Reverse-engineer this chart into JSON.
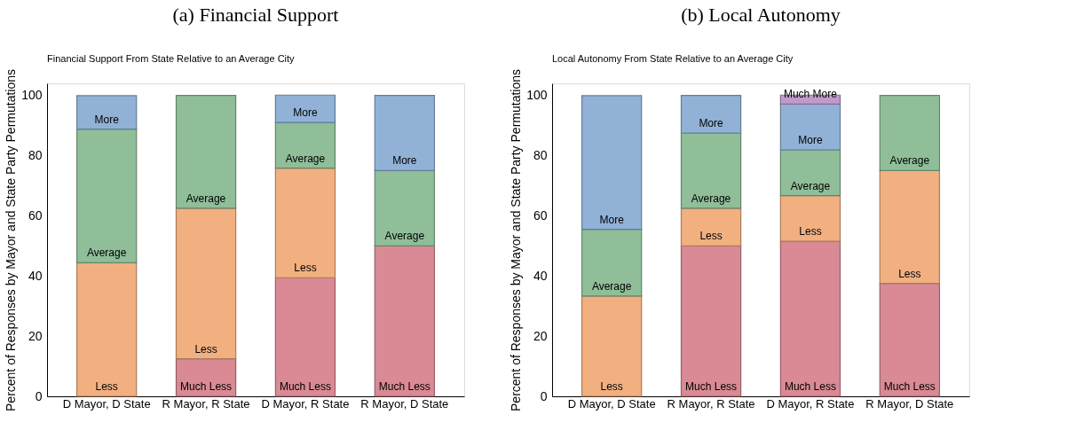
{
  "chart_data": [
    {
      "type": "bar",
      "stacked": true,
      "title": "(a) Financial Support",
      "subtitle": "Financial Support From State Relative to an Average City",
      "ylabel": "Percent of Responses by Mayor and State Party Permutations",
      "categories": [
        "D Mayor, D State",
        "R Mayor, R State",
        "D Mayor, R State",
        "R Mayor, D State"
      ],
      "series": [
        {
          "name": "Much Less",
          "color": "#d98a94",
          "values": [
            0,
            12.5,
            39.4,
            50
          ]
        },
        {
          "name": "Less",
          "color": "#f2b081",
          "values": [
            44.4,
            50,
            36.4,
            0
          ]
        },
        {
          "name": "Average",
          "color": "#8fbe99",
          "values": [
            44.4,
            37.5,
            15.2,
            25
          ]
        },
        {
          "name": "More",
          "color": "#91b2d6",
          "values": [
            11.1,
            0,
            9.1,
            25
          ]
        }
      ],
      "ylim": [
        0,
        104
      ],
      "yticks": [
        0,
        20,
        40,
        60,
        80,
        100
      ],
      "grid": false
    },
    {
      "type": "bar",
      "stacked": true,
      "title": "(b) Local Autonomy",
      "subtitle": "Local Autonomy From State Relative to an Average City",
      "ylabel": "Percent of Responses by Mayor and State Party Permutations",
      "categories": [
        "D Mayor, D State",
        "R Mayor, R State",
        "D Mayor, R State",
        "R Mayor, D State"
      ],
      "series": [
        {
          "name": "Much Less",
          "color": "#d98a94",
          "values": [
            0,
            50,
            51.5,
            37.5
          ]
        },
        {
          "name": "Less",
          "color": "#f2b081",
          "values": [
            33.3,
            12.5,
            15.2,
            37.5
          ]
        },
        {
          "name": "Average",
          "color": "#8fbe99",
          "values": [
            22.2,
            25,
            15.2,
            25
          ]
        },
        {
          "name": "More",
          "color": "#91b2d6",
          "values": [
            44.4,
            12.5,
            15.2,
            0
          ]
        },
        {
          "name": "Much More",
          "color": "#c09ac9",
          "values": [
            0,
            0,
            3.0,
            0
          ]
        }
      ],
      "ylim": [
        0,
        104
      ],
      "yticks": [
        0,
        20,
        40,
        60,
        80,
        100
      ],
      "grid": false
    }
  ]
}
